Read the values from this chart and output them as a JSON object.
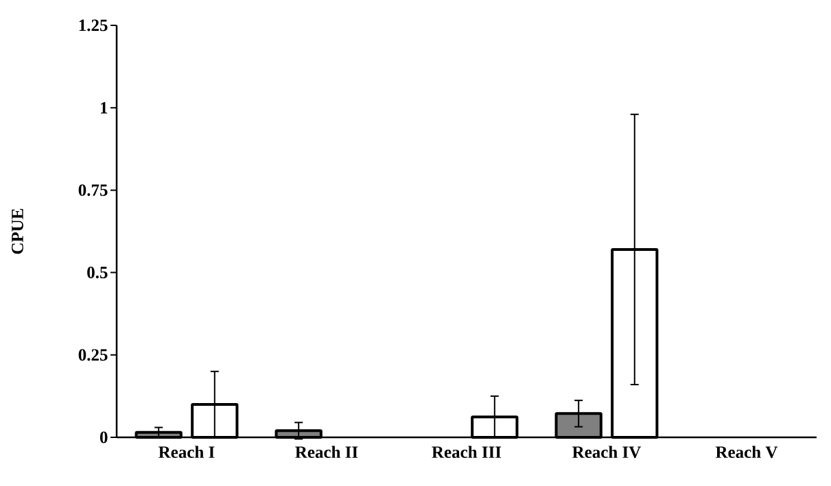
{
  "chart_data": {
    "type": "bar",
    "ylabel": "CPUE",
    "categories": [
      "Reach I",
      "Reach II",
      "Reach III",
      "Reach IV",
      "Reach V"
    ],
    "series": [
      {
        "color": "#808080",
        "values": [
          0.015,
          0.02,
          null,
          0.072,
          null
        ],
        "errors": [
          0.015,
          0.025,
          null,
          0.04,
          null
        ]
      },
      {
        "color": "#ffffff",
        "values": [
          0.1,
          null,
          0.062,
          0.57,
          null
        ],
        "errors": [
          0.1,
          null,
          0.063,
          0.41,
          null
        ]
      }
    ],
    "ylim": [
      0,
      1.25
    ],
    "yticks": [
      0,
      0.25,
      0.5,
      0.75,
      1,
      1.25
    ],
    "grid": false
  }
}
